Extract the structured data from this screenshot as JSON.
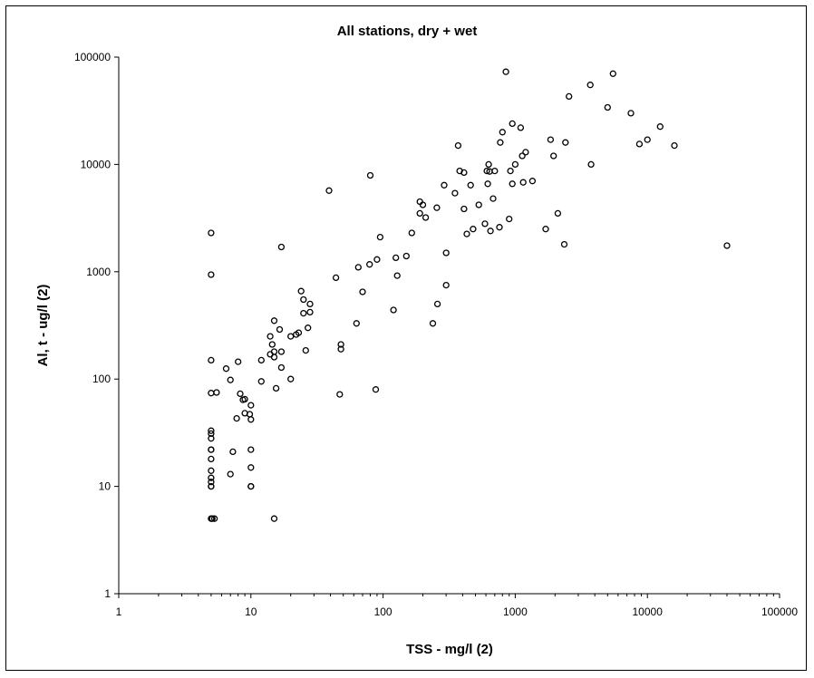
{
  "chart_data": {
    "type": "scatter",
    "title": "All stations, dry + wet",
    "xlabel": "TSS - mg/l (2)",
    "ylabel": "Al, t - ug/l (2)",
    "x_scale": "log",
    "y_scale": "log",
    "xlim": [
      1,
      100000
    ],
    "ylim": [
      1,
      100000
    ],
    "x_tick_labels": [
      "1",
      "10",
      "100",
      "1000",
      "10000",
      "100000"
    ],
    "y_tick_labels": [
      "1",
      "10",
      "100",
      "1000",
      "10000",
      "100000"
    ],
    "grid": false,
    "legend": "none",
    "marker": "open-circle",
    "colors": {
      "marker_stroke": "#000000",
      "axis": "#000000",
      "background": "#ffffff",
      "frame": "#000000"
    },
    "points": [
      [
        5,
        2300
      ],
      [
        5,
        940
      ],
      [
        5,
        150
      ],
      [
        5,
        74
      ],
      [
        5,
        33
      ],
      [
        5,
        31
      ],
      [
        5,
        28
      ],
      [
        5,
        22
      ],
      [
        5,
        22
      ],
      [
        5,
        18
      ],
      [
        5,
        14
      ],
      [
        5,
        12
      ],
      [
        5,
        11
      ],
      [
        5,
        10
      ],
      [
        5,
        10
      ],
      [
        5,
        5
      ],
      [
        5.1,
        5
      ],
      [
        5.3,
        5
      ],
      [
        5.5,
        75
      ],
      [
        6.5,
        125
      ],
      [
        7,
        98
      ],
      [
        7,
        13
      ],
      [
        7.3,
        21
      ],
      [
        7.8,
        43
      ],
      [
        8,
        145
      ],
      [
        8.3,
        73
      ],
      [
        8.7,
        64
      ],
      [
        9,
        65
      ],
      [
        9,
        48
      ],
      [
        9.8,
        47
      ],
      [
        10,
        57
      ],
      [
        10,
        42
      ],
      [
        10,
        22
      ],
      [
        10,
        15
      ],
      [
        10,
        10
      ],
      [
        10,
        10
      ],
      [
        12,
        95
      ],
      [
        12,
        150
      ],
      [
        14,
        170
      ],
      [
        14,
        250
      ],
      [
        14.5,
        210
      ],
      [
        15,
        350
      ],
      [
        15,
        180
      ],
      [
        15,
        160
      ],
      [
        15,
        5
      ],
      [
        15.5,
        82
      ],
      [
        16.5,
        290
      ],
      [
        17,
        180
      ],
      [
        17,
        1700
      ],
      [
        17,
        128
      ],
      [
        20,
        100
      ],
      [
        20,
        250
      ],
      [
        22,
        260
      ],
      [
        23,
        270
      ],
      [
        24,
        660
      ],
      [
        25,
        410
      ],
      [
        25,
        550
      ],
      [
        26,
        185
      ],
      [
        27,
        300
      ],
      [
        28,
        500
      ],
      [
        28,
        420
      ],
      [
        39,
        5700
      ],
      [
        44,
        880
      ],
      [
        47,
        72
      ],
      [
        48,
        210
      ],
      [
        48,
        190
      ],
      [
        63,
        330
      ],
      [
        65,
        1100
      ],
      [
        70,
        650
      ],
      [
        79,
        1170
      ],
      [
        80,
        7900
      ],
      [
        88,
        80
      ],
      [
        90,
        1300
      ],
      [
        95,
        2100
      ],
      [
        120,
        440
      ],
      [
        125,
        1350
      ],
      [
        128,
        920
      ],
      [
        150,
        1400
      ],
      [
        165,
        2300
      ],
      [
        190,
        3500
      ],
      [
        190,
        4500
      ],
      [
        200,
        4200
      ],
      [
        210,
        3200
      ],
      [
        238,
        330
      ],
      [
        255,
        3950
      ],
      [
        258,
        500
      ],
      [
        290,
        6400
      ],
      [
        300,
        750
      ],
      [
        300,
        1500
      ],
      [
        350,
        5400
      ],
      [
        370,
        15000
      ],
      [
        380,
        8700
      ],
      [
        410,
        3850
      ],
      [
        410,
        8400
      ],
      [
        430,
        2250
      ],
      [
        460,
        6400
      ],
      [
        480,
        2500
      ],
      [
        530,
        4200
      ],
      [
        590,
        2800
      ],
      [
        610,
        8700
      ],
      [
        620,
        6600
      ],
      [
        630,
        10000
      ],
      [
        640,
        8600
      ],
      [
        650,
        2400
      ],
      [
        680,
        4800
      ],
      [
        700,
        8700
      ],
      [
        760,
        2600
      ],
      [
        770,
        16000
      ],
      [
        800,
        20000
      ],
      [
        850,
        73000
      ],
      [
        900,
        3100
      ],
      [
        920,
        8700
      ],
      [
        950,
        6600
      ],
      [
        950,
        24000
      ],
      [
        1000,
        10000
      ],
      [
        1100,
        22000
      ],
      [
        1130,
        12000
      ],
      [
        1150,
        6800
      ],
      [
        1200,
        13000
      ],
      [
        1350,
        7000
      ],
      [
        1700,
        2500
      ],
      [
        1850,
        17000
      ],
      [
        1950,
        12000
      ],
      [
        2100,
        3500
      ],
      [
        2350,
        1800
      ],
      [
        2400,
        16000
      ],
      [
        2550,
        43000
      ],
      [
        3700,
        55000
      ],
      [
        3750,
        10000
      ],
      [
        5000,
        34000
      ],
      [
        5500,
        70000
      ],
      [
        7500,
        30000
      ],
      [
        8700,
        15500
      ],
      [
        10000,
        17000
      ],
      [
        12500,
        22500
      ],
      [
        16000,
        15000
      ],
      [
        40000,
        1750
      ]
    ]
  }
}
